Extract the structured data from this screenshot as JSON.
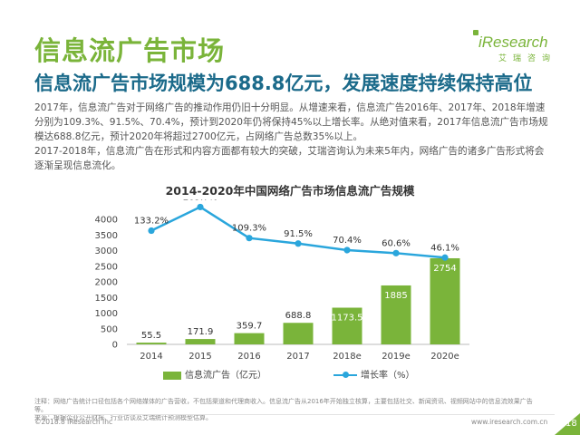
{
  "slide": {
    "title": "信息流广告市场",
    "subtitle": "信息流广告市场规模为688.8亿元，发展速度持续保持高位",
    "paragraphs": [
      "2017年，信息流广告对于网络广告的推动作用仍旧十分明显。从增速来看，信息流广告2016年、2017年、2018年增速分别为109.3%、91.5%、70.4%，预计到2020年仍将保持45%以上增长率。从绝对值来看，2017年信息流广告市场规模达688.8亿元，预计2020年将超过2700亿元，占网络广告总数35%以上。",
      "2017-2018年，信息流广告在形式和内容方面都有较大的突破，艾瑞咨询认为未来5年内，网络广告的诸多广告形式将会逐渐呈现信息流化。"
    ],
    "footnote_lines": [
      "注释：网络广告统计口径包括各个网络媒体的广告营收，不包括渠道和代理商收入。信息流广告从2016年开始独立核算，主要包括社交、新闻资讯、视频网站中的信息流效果广告等。",
      "来源：根据企业公开财报、行业访谈及艾瑞统计预测模型估算。"
    ],
    "copyright": "©2018.8 iResearch Inc",
    "website": "www.iresearch.com.cn",
    "page_number": "18"
  },
  "logo": {
    "brand": "iResearch",
    "brand_cn": "艾瑞咨询"
  },
  "colors": {
    "accent": "#7ab43a",
    "bar": "#7ab43a",
    "line": "#2aa6dc",
    "subtitle": "#1b6a8a"
  },
  "chart_data": {
    "type": "bar",
    "title": "2014-2020年中国网络广告市场信息流广告规模",
    "categories": [
      "2014",
      "2015",
      "2016",
      "2017",
      "2018e",
      "2019e",
      "2020e"
    ],
    "series": [
      {
        "name": "信息流广告（亿元）",
        "type": "bar",
        "values": [
          55.5,
          171.9,
          359.7,
          688.8,
          1173.5,
          1885,
          2754
        ],
        "labels": [
          "55.5",
          "171.9",
          "359.7",
          "688.8",
          "1173.5",
          "1885",
          "2754"
        ]
      },
      {
        "name": "增长率（%）",
        "type": "line",
        "values": [
          133.2,
          209.7,
          109.3,
          91.5,
          70.4,
          60.6,
          46.1
        ],
        "labels": [
          "133.2%",
          "209.7%",
          "109.3%",
          "91.5%",
          "70.4%",
          "60.6%",
          "46.1%"
        ]
      }
    ],
    "ylim": [
      0,
      4000
    ],
    "yticks": [
      "0",
      "500",
      "1000",
      "1500",
      "2000",
      "2500",
      "3000",
      "3500",
      "4000"
    ],
    "legend_position": "bottom",
    "grid": false
  }
}
